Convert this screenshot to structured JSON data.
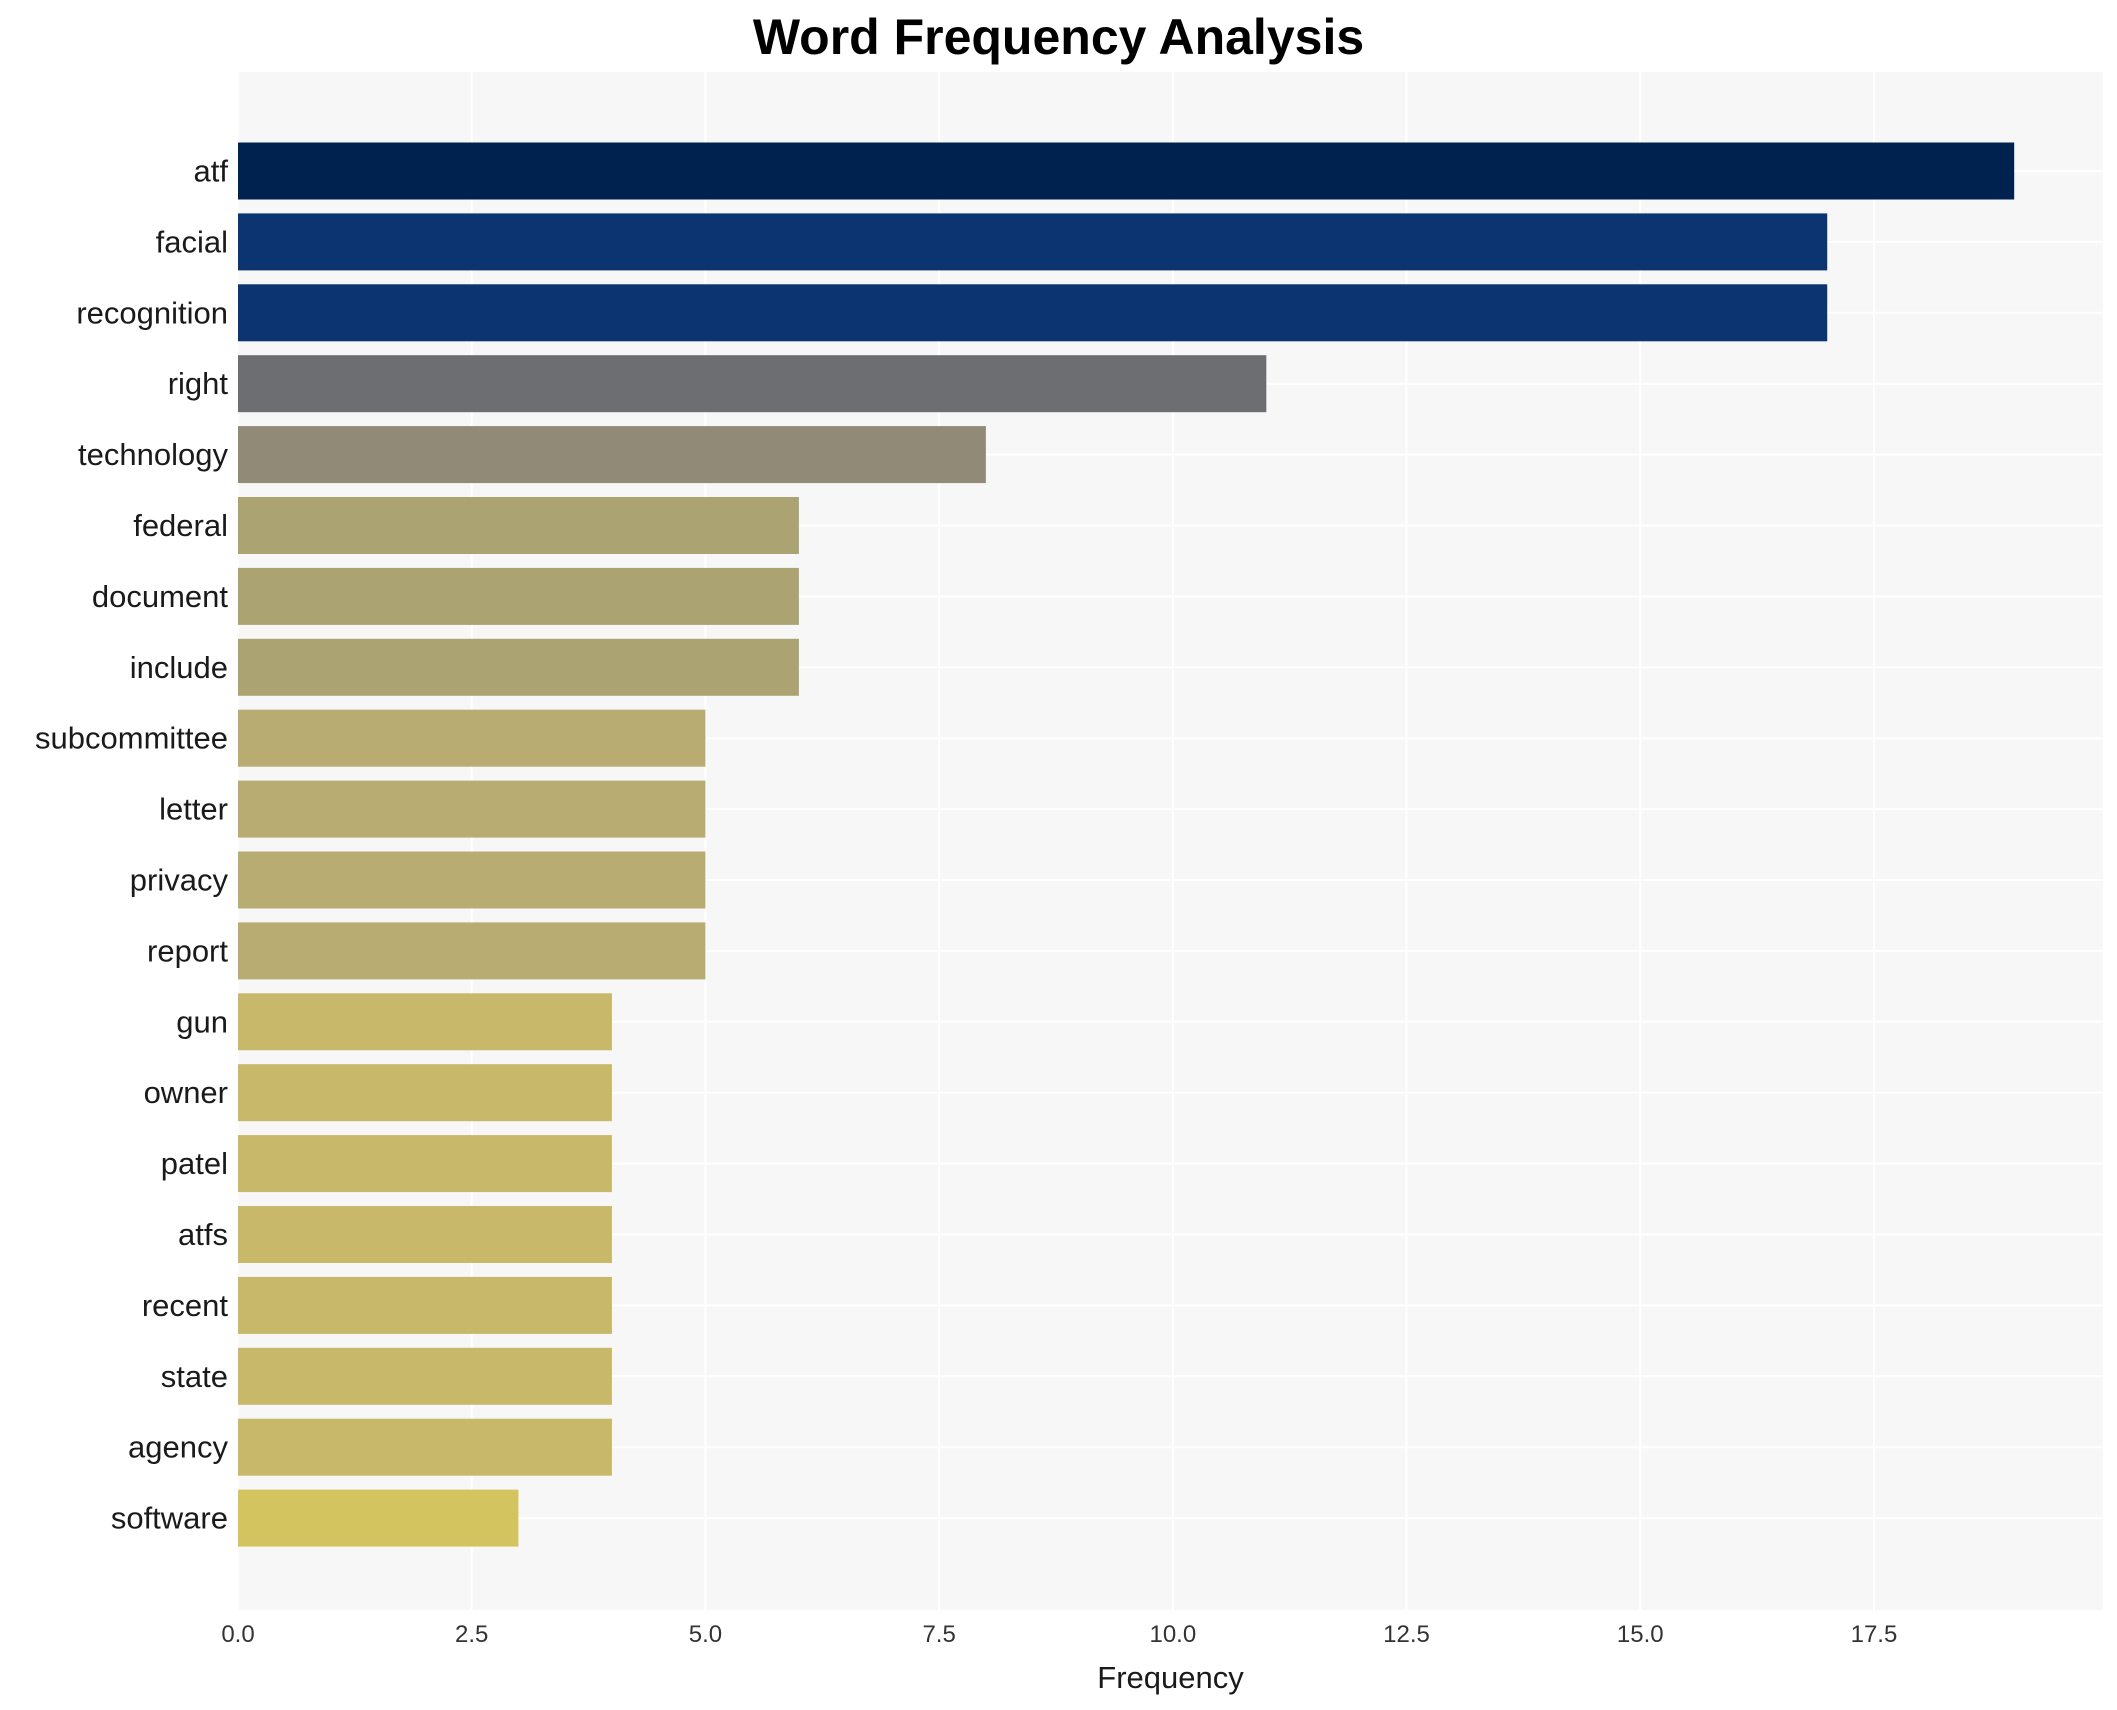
{
  "chart_data": {
    "type": "bar",
    "orientation": "horizontal",
    "title": "Word Frequency Analysis",
    "xlabel": "Frequency",
    "ylabel": "",
    "categories": [
      "atf",
      "facial",
      "recognition",
      "right",
      "technology",
      "federal",
      "document",
      "include",
      "subcommittee",
      "letter",
      "privacy",
      "report",
      "gun",
      "owner",
      "patel",
      "atfs",
      "recent",
      "state",
      "agency",
      "software"
    ],
    "values": [
      19,
      17,
      17,
      11,
      8,
      6,
      6,
      6,
      5,
      5,
      5,
      5,
      4,
      4,
      4,
      4,
      4,
      4,
      4,
      3
    ],
    "colors": [
      "#00224e",
      "#0c3470",
      "#0c3470",
      "#6d6e71",
      "#908a77",
      "#aca373",
      "#aca373",
      "#aca373",
      "#b9ac72",
      "#b9ac72",
      "#b9ac72",
      "#b9ac72",
      "#c8b869",
      "#c8b869",
      "#c8b869",
      "#c8b869",
      "#c8b869",
      "#c8b869",
      "#c8b869",
      "#d4c45f"
    ],
    "xlim": [
      0,
      19.95
    ],
    "xticks": [
      0,
      2.5,
      5,
      7.5,
      10,
      12.5,
      15,
      17.5
    ],
    "xtick_labels": [
      "0.0",
      "2.5",
      "5.0",
      "7.5",
      "10.0",
      "12.5",
      "15.0",
      "17.5"
    ],
    "grid": true,
    "background": "#f7f7f7",
    "legend": "none"
  }
}
